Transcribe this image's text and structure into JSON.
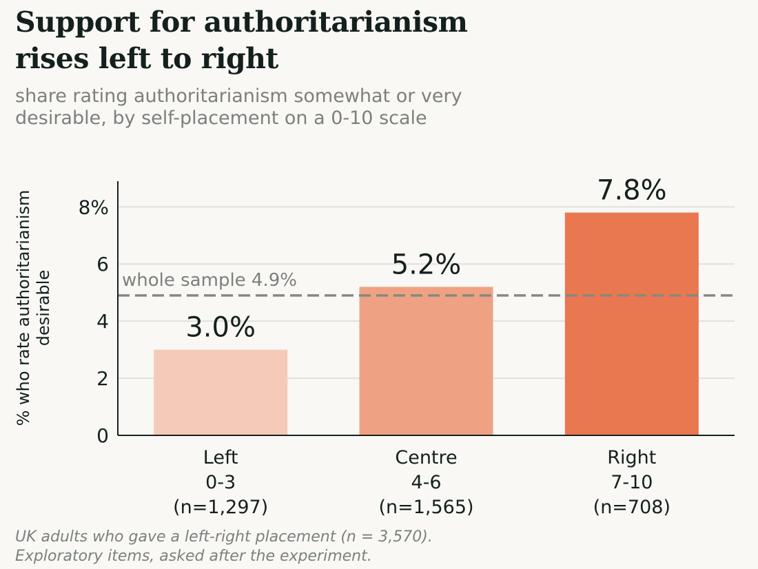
{
  "title_lines": [
    "Support for authoritarianism",
    "rises left to right"
  ],
  "subtitle_lines": [
    "share rating authoritarianism somewhat or very",
    "desirable, by self-placement on a 0-10 scale"
  ],
  "footnote_lines": [
    "UK adults who gave a left-right placement (n = 3,570).",
    "Exploratory items, asked after the experiment."
  ],
  "chart_data": {
    "type": "bar",
    "title": "Support for authoritarianism rises left to right",
    "subtitle": "share rating authoritarianism somewhat or very desirable, by self-placement on a 0-10 scale",
    "ylabel_lines": [
      "% who rate authoritarianism",
      "desirable"
    ],
    "categories": [
      [
        "Left",
        "0-3",
        "(n=1,297)"
      ],
      [
        "Centre",
        "4-6",
        "(n=1,565)"
      ],
      [
        "Right",
        "7-10",
        "(n=708)"
      ]
    ],
    "values": [
      3.0,
      5.2,
      7.8
    ],
    "value_labels": [
      "3.0%",
      "5.2%",
      "7.8%"
    ],
    "colors": [
      "#f5cab9",
      "#efa283",
      "#e9774f"
    ],
    "ylim": [
      0,
      8.9
    ],
    "yticks": [
      0,
      2,
      4,
      6,
      8
    ],
    "ytick_labels": [
      "0",
      "2",
      "4",
      "6",
      "8%"
    ],
    "reference_line": {
      "value": 4.9,
      "label": "whole sample 4.9%",
      "color": "#858885"
    },
    "grid": true,
    "gridline_color": "#e2e0dc",
    "axis_color": "#14201d"
  }
}
